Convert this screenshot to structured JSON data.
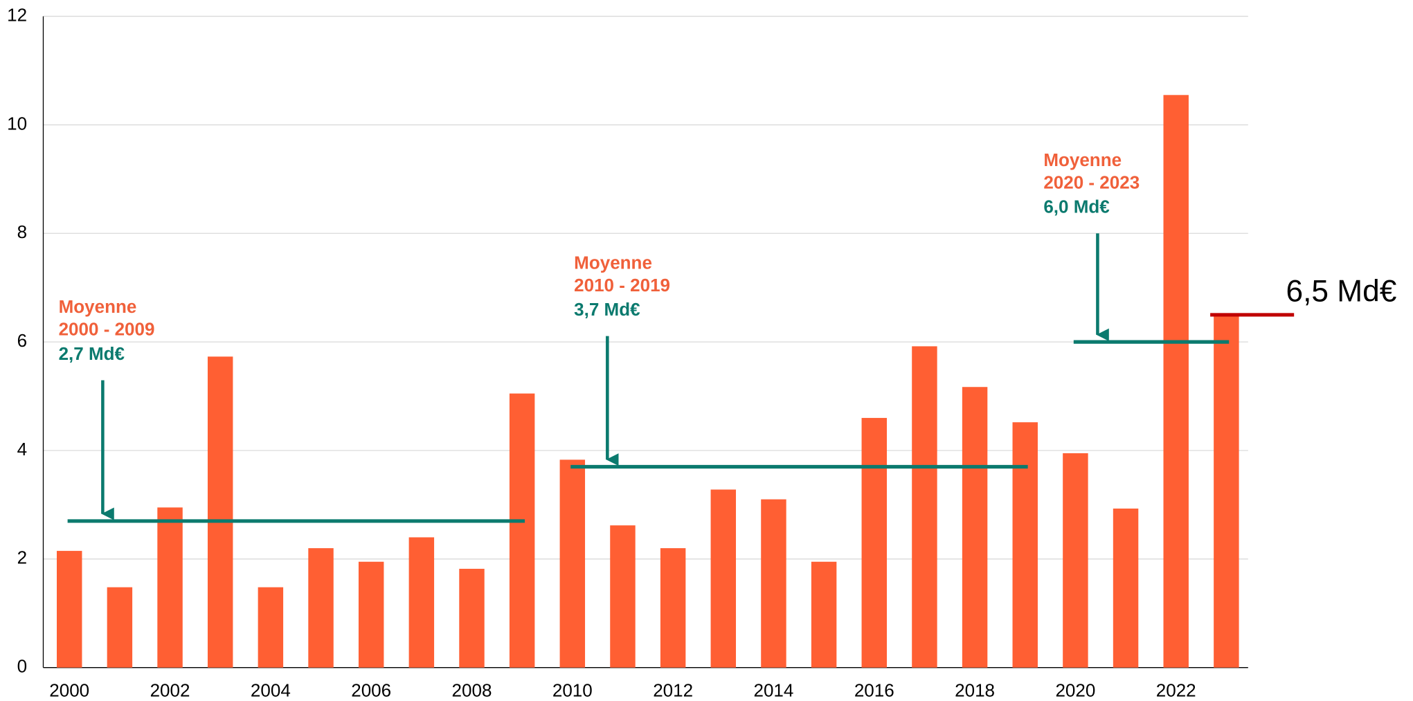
{
  "chart_data": {
    "type": "bar",
    "categories": [
      "2000",
      null,
      "2002",
      null,
      "2004",
      null,
      "2006",
      null,
      "2008",
      null,
      "2010",
      null,
      "2012",
      null,
      "2014",
      null,
      "2016",
      null,
      "2018",
      null,
      "2020",
      null,
      "2022",
      null
    ],
    "values": [
      2.15,
      1.48,
      2.95,
      5.73,
      1.48,
      2.2,
      1.95,
      2.4,
      1.82,
      5.05,
      3.83,
      2.62,
      2.2,
      3.28,
      3.1,
      1.95,
      4.6,
      5.92,
      5.17,
      4.52,
      3.95,
      2.93,
      10.55,
      6.5
    ],
    "color": "#ff5f33",
    "ylim": [
      0,
      12
    ],
    "yticks": [
      0,
      2,
      4,
      6,
      8,
      10,
      12
    ],
    "grid": true,
    "averages": [
      {
        "title": "Moyenne",
        "period": "2000 - 2009",
        "value": 2.7,
        "value_label": "2,7 Md€"
      },
      {
        "title": "Moyenne",
        "period": "2010 - 2019",
        "value": 3.7,
        "value_label": "3,7 Md€"
      },
      {
        "title": "Moyenne",
        "period": "2020 - 2023",
        "value": 6,
        "value_label": "6,0 Md€"
      }
    ],
    "average_color": "#0b7a6e",
    "annotation_color": "#f0603a",
    "reference": {
      "value": 6.5,
      "label": "6,5 Md€",
      "color": "#c00000"
    }
  }
}
